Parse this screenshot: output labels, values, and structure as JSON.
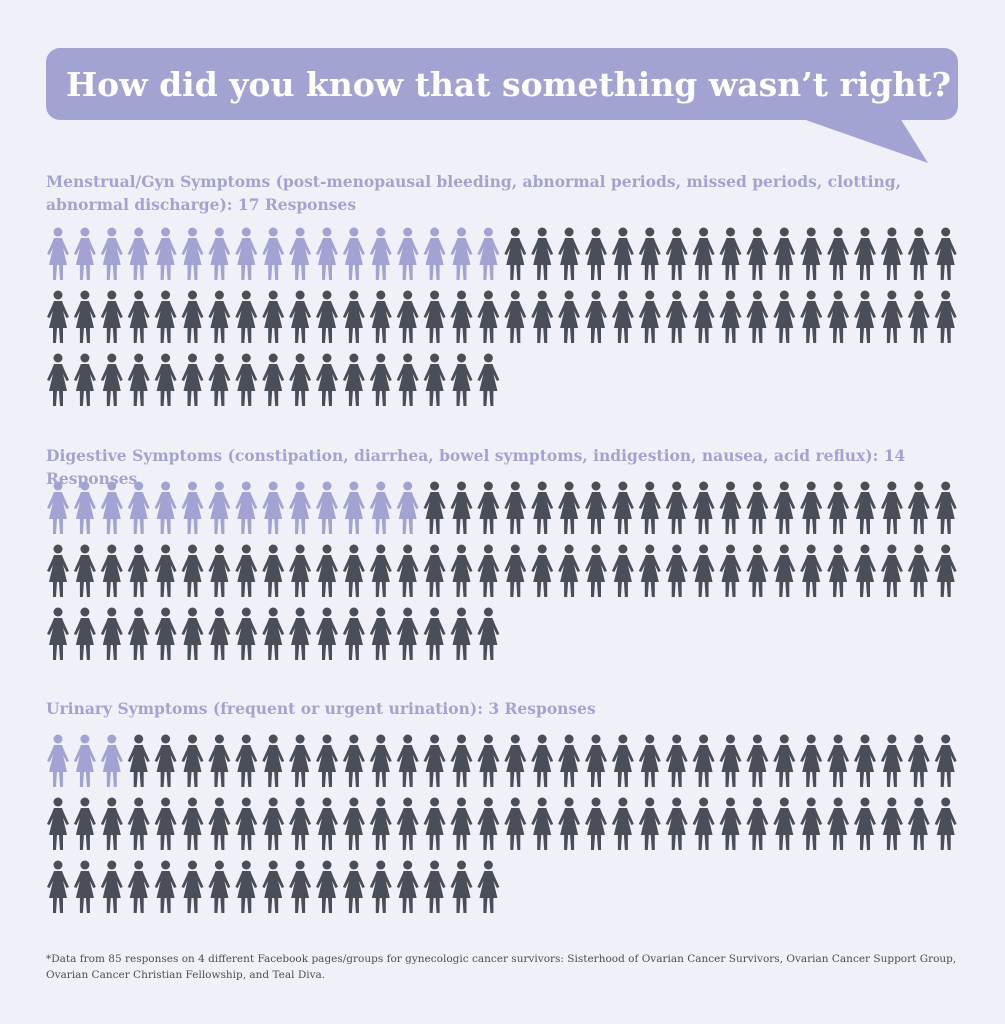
{
  "title": "How did you know that something wasn’t right?",
  "colors": {
    "highlight": "#a3a3d3",
    "base": "#4a4e58",
    "background": "#f0f0f8"
  },
  "chart_data": [
    {
      "type": "pictogram",
      "label": "Menstrual/Gyn Symptoms (post-menopausal bleeding, abnormal periods, missed periods, clotting, abnormal discharge):  17 Responses",
      "category": "Menstrual/Gyn Symptoms",
      "responses": 17,
      "total": 85
    },
    {
      "type": "pictogram",
      "label": "Digestive Symptoms (constipation, diarrhea, bowel symptoms, indigestion, nausea, acid reflux): 14 Responses",
      "category": "Digestive Symptoms",
      "responses": 14,
      "total": 85
    },
    {
      "type": "pictogram",
      "label": "Urinary Symptoms (frequent or urgent urination): 3 Responses",
      "category": "Urinary Symptoms",
      "responses": 3,
      "total": 85
    }
  ],
  "footnote": "*Data from 85 responses on 4 different Facebook pages/groups for gynecologic cancer survivors: Sisterhood of Ovarian Cancer Survivors, Ovarian Cancer Support Group, Ovarian Cancer Christian Fellowship, and Teal Diva."
}
